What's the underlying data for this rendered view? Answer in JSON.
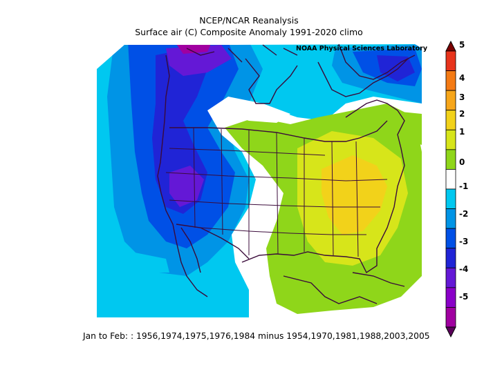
{
  "title_line1": "NCEP/NCAR Reanalysis",
  "title_line2": "Surface air (C) Composite Anomaly 1991-2020 climo",
  "credit": "NOAA Physical Sciences Laboratory",
  "caption": "Jan to Feb: : 1956,1974,1975,1976,1984 minus 1954,1970,1981,1988,2003,2005",
  "colorbar": {
    "tick_labels": [
      "5",
      "4",
      "3",
      "2",
      "1",
      "0",
      "-1",
      "-2",
      "-3",
      "-4",
      "-5"
    ],
    "colors": [
      "#7a0000",
      "#e8341c",
      "#f47a14",
      "#f7a61a",
      "#f2d21a",
      "#d7e51a",
      "#8fd61a",
      "#ffffff",
      "#00c8f0",
      "#0094e6",
      "#0050e6",
      "#2024d6",
      "#6418d6",
      "#8a00c8",
      "#a000a0",
      "#5a005a"
    ]
  },
  "colors": {
    "deep_purple": "#6418d6",
    "dark_blue": "#2024d6",
    "blue": "#0050e6",
    "mid_blue": "#0094e6",
    "light_blue": "#00c8f0",
    "neutral": "#ffffff",
    "green": "#8fd61a",
    "yellow_green": "#d7e51a",
    "yellow": "#f2d21a",
    "coast": "#3a0a3a"
  }
}
